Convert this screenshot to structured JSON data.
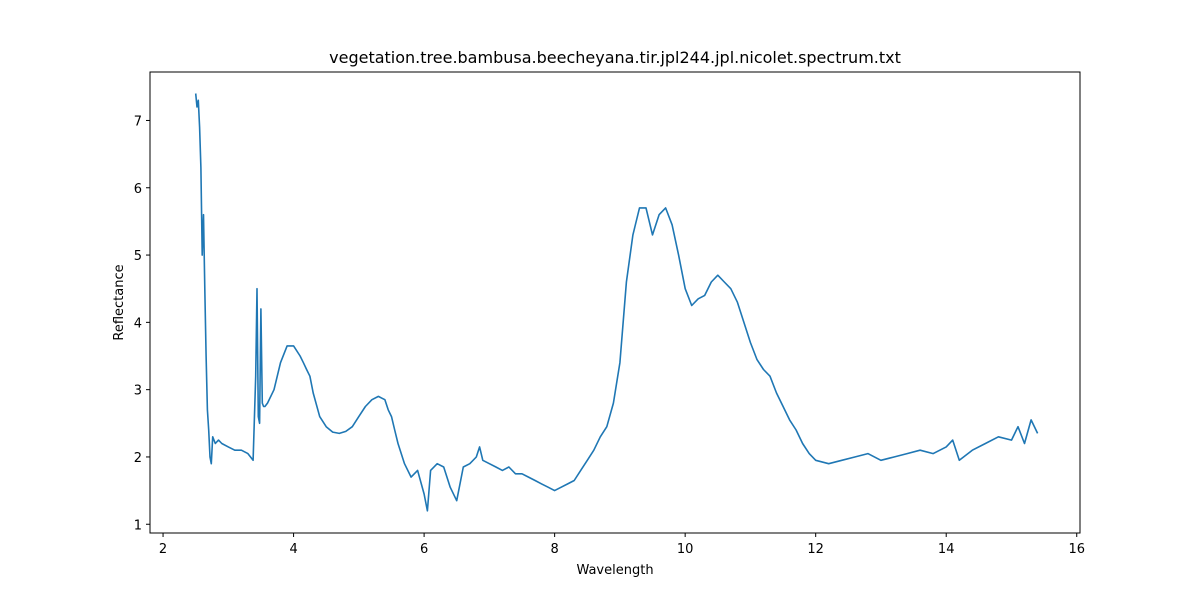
{
  "chart_data": {
    "type": "line",
    "title": "vegetation.tree.bambusa.beecheyana.tir.jpl244.jpl.nicolet.spectrum.txt",
    "xlabel": "Wavelength",
    "ylabel": "Reflectance",
    "xlim": [
      1.8,
      16.05
    ],
    "ylim": [
      0.87,
      7.72
    ],
    "xticks": [
      2,
      4,
      6,
      8,
      10,
      12,
      14,
      16
    ],
    "yticks": [
      1,
      2,
      3,
      4,
      5,
      6,
      7
    ],
    "grid": false,
    "legend": "none",
    "line_color": "#1f77b4",
    "series": [
      {
        "x": [
          2.5,
          2.52,
          2.54,
          2.56,
          2.58,
          2.6,
          2.62,
          2.64,
          2.66,
          2.68,
          2.7,
          2.72,
          2.74,
          2.76,
          2.8,
          2.85,
          2.9,
          3.0,
          3.1,
          3.2,
          3.3,
          3.38,
          3.42,
          3.44,
          3.46,
          3.48,
          3.5,
          3.52,
          3.54,
          3.56,
          3.6,
          3.7,
          3.8,
          3.9,
          4.0,
          4.1,
          4.15,
          4.2,
          4.25,
          4.3,
          4.4,
          4.5,
          4.6,
          4.7,
          4.8,
          4.9,
          5.0,
          5.1,
          5.2,
          5.3,
          5.4,
          5.45,
          5.5,
          5.55,
          5.6,
          5.7,
          5.8,
          5.9,
          6.0,
          6.05,
          6.1,
          6.2,
          6.3,
          6.4,
          6.5,
          6.6,
          6.7,
          6.8,
          6.85,
          6.9,
          7.0,
          7.1,
          7.2,
          7.3,
          7.4,
          7.5,
          7.6,
          7.7,
          7.8,
          7.9,
          8.0,
          8.1,
          8.2,
          8.3,
          8.4,
          8.5,
          8.6,
          8.7,
          8.8,
          8.9,
          9.0,
          9.1,
          9.2,
          9.3,
          9.4,
          9.5,
          9.6,
          9.7,
          9.8,
          9.9,
          10.0,
          10.1,
          10.2,
          10.3,
          10.4,
          10.5,
          10.6,
          10.7,
          10.8,
          10.9,
          11.0,
          11.1,
          11.2,
          11.3,
          11.4,
          11.5,
          11.6,
          11.7,
          11.8,
          11.9,
          12.0,
          12.2,
          12.4,
          12.6,
          12.8,
          13.0,
          13.2,
          13.4,
          13.6,
          13.8,
          14.0,
          14.1,
          14.2,
          14.4,
          14.6,
          14.8,
          15.0,
          15.1,
          15.2,
          15.3,
          15.4
        ],
        "y": [
          7.4,
          7.2,
          7.3,
          6.9,
          6.3,
          5.0,
          5.6,
          4.5,
          3.5,
          2.7,
          2.4,
          2.0,
          1.9,
          2.3,
          2.2,
          2.25,
          2.2,
          2.15,
          2.1,
          2.1,
          2.05,
          1.95,
          3.2,
          4.5,
          2.6,
          2.5,
          4.2,
          2.8,
          2.75,
          2.75,
          2.8,
          3.0,
          3.4,
          3.65,
          3.65,
          3.5,
          3.4,
          3.3,
          3.2,
          2.95,
          2.6,
          2.45,
          2.37,
          2.35,
          2.38,
          2.45,
          2.6,
          2.75,
          2.85,
          2.9,
          2.85,
          2.7,
          2.6,
          2.4,
          2.2,
          1.9,
          1.7,
          1.8,
          1.45,
          1.2,
          1.8,
          1.9,
          1.85,
          1.55,
          1.35,
          1.85,
          1.9,
          2.0,
          2.15,
          1.95,
          1.9,
          1.85,
          1.8,
          1.85,
          1.75,
          1.75,
          1.7,
          1.65,
          1.6,
          1.55,
          1.5,
          1.55,
          1.6,
          1.65,
          1.8,
          1.95,
          2.1,
          2.3,
          2.45,
          2.8,
          3.4,
          4.6,
          5.3,
          5.7,
          5.7,
          5.3,
          5.6,
          5.7,
          5.45,
          5.0,
          4.5,
          4.25,
          4.35,
          4.4,
          4.6,
          4.7,
          4.6,
          4.5,
          4.3,
          4.0,
          3.7,
          3.45,
          3.3,
          3.2,
          2.95,
          2.75,
          2.55,
          2.4,
          2.2,
          2.05,
          1.95,
          1.9,
          1.95,
          2.0,
          2.05,
          1.95,
          2.0,
          2.05,
          2.1,
          2.05,
          2.15,
          2.25,
          1.95,
          2.1,
          2.2,
          2.3,
          2.25,
          2.45,
          2.2,
          2.55,
          2.35
        ]
      }
    ]
  }
}
